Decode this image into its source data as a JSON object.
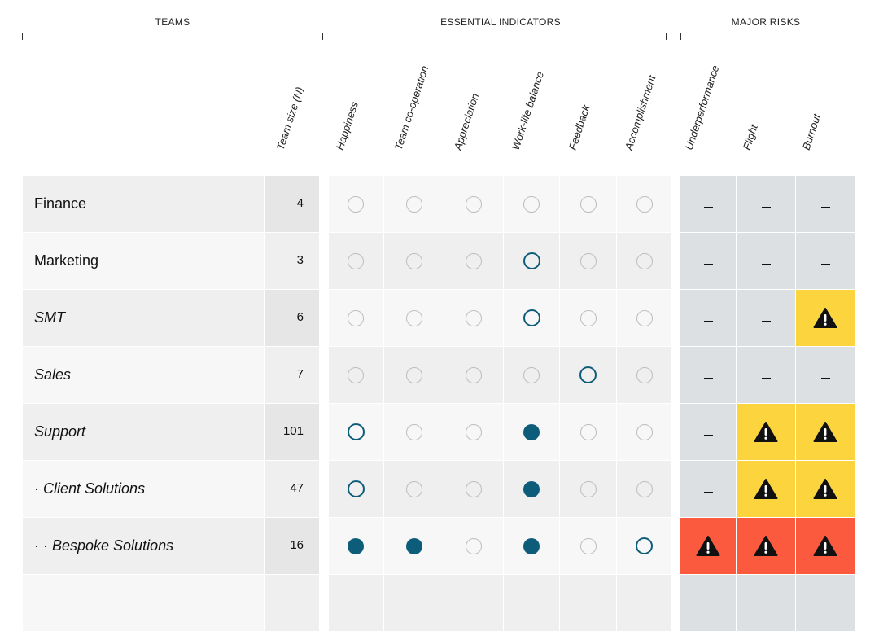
{
  "groups": {
    "teams": "TEAMS",
    "essential": "ESSENTIAL INDICATORS",
    "risks": "MAJOR RISKS"
  },
  "columns": {
    "team_size": "Team size (N)",
    "indicators": [
      "Happiness",
      "Team co-operation",
      "Appreciation",
      "Work-life balance",
      "Feedback",
      "Accomplishment"
    ],
    "risks": [
      "Underperformance",
      "Flight",
      "Burnout"
    ]
  },
  "colors": {
    "indicator_accent": "#0d5c7a",
    "risk_none": "#dde0e3",
    "risk_medium": "#fbd43e",
    "risk_high": "#fc5a3f"
  },
  "rows": [
    {
      "name": "Finance",
      "italic": false,
      "size": "4",
      "indicators": [
        "empty",
        "empty",
        "empty",
        "empty",
        "empty",
        "empty"
      ],
      "risks": [
        "none",
        "none",
        "none"
      ]
    },
    {
      "name": "Marketing",
      "italic": false,
      "size": "3",
      "indicators": [
        "empty",
        "empty",
        "empty",
        "outline",
        "empty",
        "empty"
      ],
      "risks": [
        "none",
        "none",
        "none"
      ]
    },
    {
      "name": "SMT",
      "italic": true,
      "size": "6",
      "indicators": [
        "empty",
        "empty",
        "empty",
        "outline",
        "empty",
        "empty"
      ],
      "risks": [
        "none",
        "none",
        "warning-medium"
      ]
    },
    {
      "name": "Sales",
      "italic": true,
      "size": "7",
      "indicators": [
        "empty",
        "empty",
        "empty",
        "empty",
        "outline",
        "empty"
      ],
      "risks": [
        "none",
        "none",
        "none"
      ]
    },
    {
      "name": "Support",
      "italic": true,
      "size": "101",
      "indicators": [
        "outline",
        "empty",
        "empty",
        "filled",
        "empty",
        "empty"
      ],
      "risks": [
        "none",
        "warning-medium",
        "warning-medium"
      ]
    },
    {
      "name": "· Client Solutions",
      "italic": true,
      "size": "47",
      "indicators": [
        "outline",
        "empty",
        "empty",
        "filled",
        "empty",
        "empty"
      ],
      "risks": [
        "none",
        "warning-medium",
        "warning-medium"
      ]
    },
    {
      "name": "· · Bespoke Solutions",
      "italic": true,
      "size": "16",
      "indicators": [
        "filled",
        "filled",
        "empty",
        "filled",
        "empty",
        "outline"
      ],
      "risks": [
        "warning-high",
        "warning-high",
        "warning-high"
      ]
    }
  ]
}
